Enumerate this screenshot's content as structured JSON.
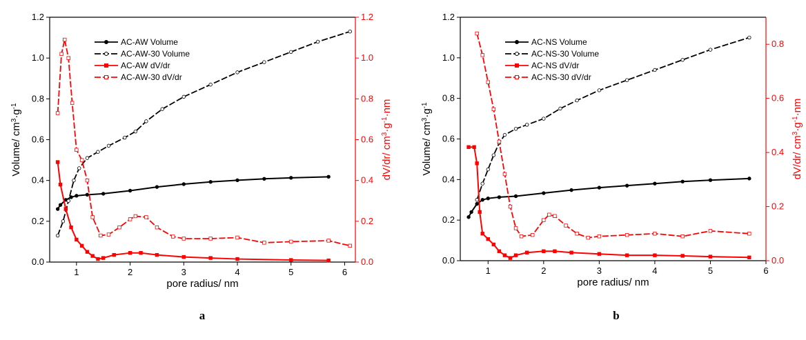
{
  "colors": {
    "black": "#000000",
    "red": "#ff0000"
  },
  "chart_data": [
    {
      "type": "line",
      "panel_label": "a",
      "xlabel": "pore radius/ nm",
      "ylabel": "Volume/ cm3·g-1",
      "ylabel2": "dV/dr/ cm3·g-1·nm",
      "xlim": [
        0.5,
        6.2
      ],
      "ylim": [
        0.0,
        1.2
      ],
      "y2lim": [
        0.0,
        1.2
      ],
      "xticks": [
        1,
        2,
        3,
        4,
        5,
        6
      ],
      "yticks": [
        0.0,
        0.2,
        0.4,
        0.6,
        0.8,
        1.0,
        1.2
      ],
      "y2ticks": [
        0.0,
        0.2,
        0.4,
        0.6,
        0.8,
        1.0,
        1.2
      ],
      "x_tick_labels": [
        "1",
        "2",
        "3",
        "4",
        "5",
        "6"
      ],
      "y_tick_labels": [
        "0.0",
        "0.2",
        "0.4",
        "0.6",
        "0.8",
        "1.0",
        "1.2"
      ],
      "y2_tick_labels": [
        "0.0",
        "0.2",
        "0.4",
        "0.6",
        "0.8",
        "1.0",
        "1.2"
      ],
      "legend_position": "top-left",
      "series": [
        {
          "name": "AC-AW Volume",
          "axis": "left",
          "color": "#000000",
          "marker": "filled",
          "dash": false,
          "x": [
            0.65,
            0.7,
            0.8,
            0.9,
            1.0,
            1.2,
            1.5,
            2.0,
            2.5,
            3.0,
            3.5,
            4.0,
            4.5,
            5.0,
            5.7
          ],
          "y": [
            0.26,
            0.28,
            0.305,
            0.318,
            0.325,
            0.33,
            0.335,
            0.35,
            0.368,
            0.382,
            0.393,
            0.401,
            0.408,
            0.413,
            0.418
          ]
        },
        {
          "name": "AC-AW-30 Volume",
          "axis": "left",
          "color": "#000000",
          "marker": "open",
          "dash": true,
          "x": [
            0.65,
            0.75,
            0.85,
            0.95,
            1.05,
            1.2,
            1.4,
            1.6,
            1.9,
            2.1,
            2.3,
            2.6,
            3.0,
            3.5,
            4.0,
            4.5,
            5.0,
            5.5,
            6.1
          ],
          "y": [
            0.13,
            0.2,
            0.3,
            0.4,
            0.46,
            0.51,
            0.54,
            0.57,
            0.61,
            0.64,
            0.69,
            0.75,
            0.81,
            0.87,
            0.93,
            0.98,
            1.03,
            1.08,
            1.13
          ]
        },
        {
          "name": "AC-AW dV/dr",
          "axis": "right",
          "color": "#ff0000",
          "marker": "filled",
          "dash": false,
          "x": [
            0.65,
            0.7,
            0.8,
            0.9,
            1.0,
            1.1,
            1.2,
            1.3,
            1.4,
            1.5,
            1.7,
            2.0,
            2.2,
            2.5,
            3.0,
            3.5,
            4.0,
            5.0,
            5.7
          ],
          "y": [
            0.49,
            0.38,
            0.26,
            0.17,
            0.11,
            0.08,
            0.05,
            0.03,
            0.015,
            0.02,
            0.035,
            0.045,
            0.045,
            0.035,
            0.025,
            0.02,
            0.015,
            0.01,
            0.008
          ]
        },
        {
          "name": "AC-AW-30 dV/dr",
          "axis": "right",
          "color": "#ff0000",
          "marker": "open",
          "dash": true,
          "x": [
            0.65,
            0.72,
            0.78,
            0.85,
            0.92,
            1.0,
            1.1,
            1.2,
            1.3,
            1.45,
            1.6,
            1.8,
            2.0,
            2.1,
            2.3,
            2.5,
            2.8,
            3.0,
            3.5,
            4.0,
            4.5,
            5.0,
            5.7,
            6.1
          ],
          "y": [
            0.73,
            1.02,
            1.09,
            1.0,
            0.78,
            0.55,
            0.5,
            0.4,
            0.22,
            0.13,
            0.135,
            0.17,
            0.21,
            0.225,
            0.22,
            0.17,
            0.125,
            0.115,
            0.115,
            0.12,
            0.095,
            0.1,
            0.105,
            0.08
          ]
        }
      ]
    },
    {
      "type": "line",
      "panel_label": "b",
      "xlabel": "pore radius/ nm",
      "ylabel": "Volume/ cm3·g-1",
      "ylabel2": "dV/dr/ cm3·g-1·nm",
      "xlim": [
        0.5,
        6.0
      ],
      "ylim": [
        0.0,
        1.2
      ],
      "y2lim": [
        0.0,
        0.9
      ],
      "xticks": [
        1,
        2,
        3,
        4,
        5,
        6
      ],
      "yticks": [
        0.0,
        0.2,
        0.4,
        0.6,
        0.8,
        1.0,
        1.2
      ],
      "y2ticks": [
        0.0,
        0.2,
        0.4,
        0.6,
        0.8
      ],
      "x_tick_labels": [
        "1",
        "2",
        "3",
        "4",
        "5",
        "6"
      ],
      "y_tick_labels": [
        "0.0",
        "0.2",
        "0.4",
        "0.6",
        "0.8",
        "1.0",
        "1.2"
      ],
      "y2_tick_labels": [
        "0.0",
        "0.2",
        "0.4",
        "0.6",
        "0.8"
      ],
      "legend_position": "top-left",
      "series": [
        {
          "name": "AC-NS Volume",
          "axis": "left",
          "color": "#000000",
          "marker": "filled",
          "dash": false,
          "x": [
            0.65,
            0.7,
            0.8,
            0.9,
            1.0,
            1.2,
            1.5,
            2.0,
            2.5,
            3.0,
            3.5,
            4.0,
            4.5,
            5.0,
            5.7
          ],
          "y": [
            0.215,
            0.24,
            0.28,
            0.3,
            0.307,
            0.313,
            0.318,
            0.333,
            0.348,
            0.36,
            0.37,
            0.38,
            0.39,
            0.397,
            0.405
          ]
        },
        {
          "name": "AC-NS-30 Volume",
          "axis": "left",
          "color": "#000000",
          "marker": "open",
          "dash": true,
          "x": [
            0.8,
            0.9,
            1.0,
            1.1,
            1.2,
            1.3,
            1.5,
            1.7,
            2.0,
            2.3,
            2.6,
            3.0,
            3.5,
            4.0,
            4.5,
            5.0,
            5.7
          ],
          "y": [
            0.3,
            0.38,
            0.45,
            0.52,
            0.58,
            0.62,
            0.65,
            0.67,
            0.7,
            0.75,
            0.79,
            0.84,
            0.89,
            0.94,
            0.99,
            1.04,
            1.1
          ]
        },
        {
          "name": "AC-NS dV/dr",
          "axis": "right",
          "color": "#ff0000",
          "marker": "filled",
          "dash": false,
          "x": [
            0.65,
            0.75,
            0.8,
            0.85,
            0.9,
            1.0,
            1.1,
            1.2,
            1.3,
            1.4,
            1.5,
            1.7,
            2.0,
            2.2,
            2.5,
            3.0,
            3.5,
            4.0,
            4.5,
            5.0,
            5.7
          ],
          "y": [
            0.42,
            0.42,
            0.36,
            0.18,
            0.1,
            0.08,
            0.06,
            0.035,
            0.02,
            0.01,
            0.02,
            0.03,
            0.035,
            0.035,
            0.03,
            0.025,
            0.02,
            0.02,
            0.018,
            0.015,
            0.012
          ]
        },
        {
          "name": "AC-NS-30 dV/dr",
          "axis": "right",
          "color": "#ff0000",
          "marker": "open",
          "dash": true,
          "x": [
            0.8,
            0.9,
            1.0,
            1.1,
            1.2,
            1.3,
            1.4,
            1.5,
            1.6,
            1.8,
            2.0,
            2.1,
            2.2,
            2.4,
            2.6,
            2.8,
            3.0,
            3.5,
            4.0,
            4.5,
            5.0,
            5.7
          ],
          "y": [
            0.84,
            0.76,
            0.66,
            0.56,
            0.44,
            0.32,
            0.2,
            0.12,
            0.09,
            0.095,
            0.15,
            0.17,
            0.165,
            0.13,
            0.1,
            0.085,
            0.09,
            0.095,
            0.1,
            0.09,
            0.11,
            0.1
          ]
        }
      ]
    }
  ]
}
